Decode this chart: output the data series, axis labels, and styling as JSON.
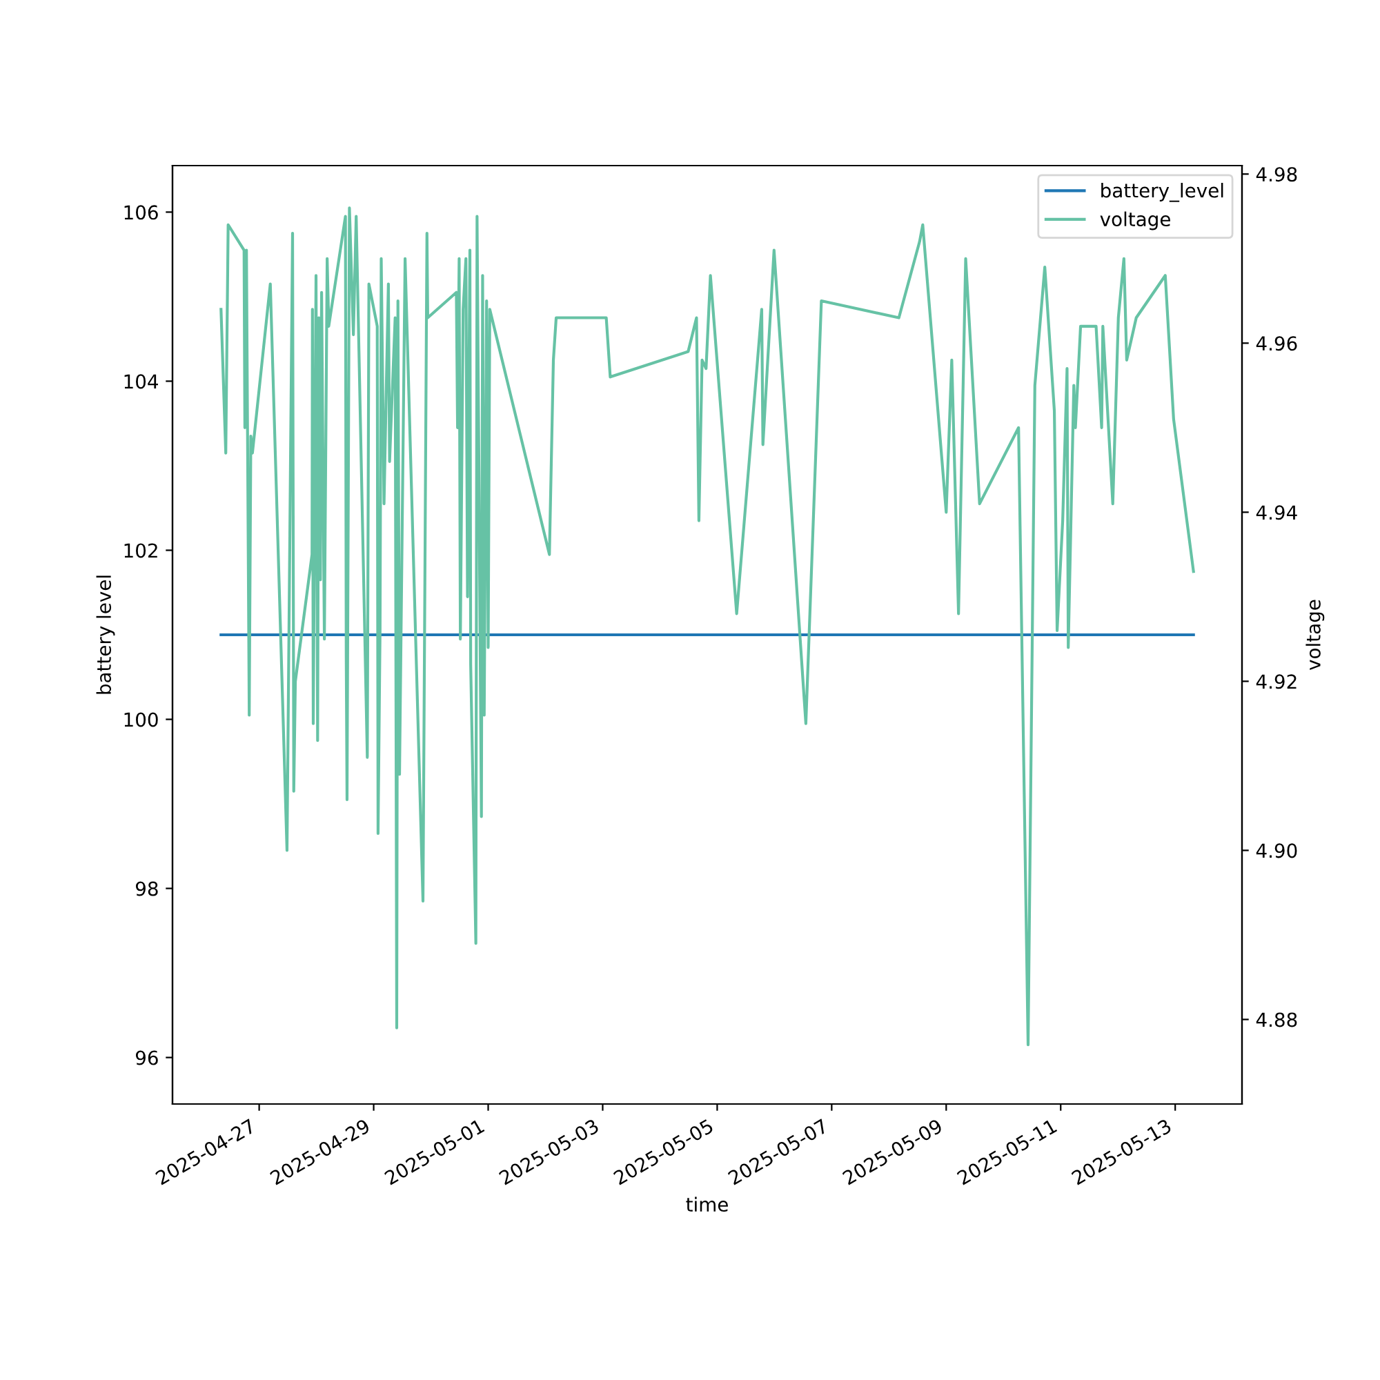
{
  "chart_data": {
    "type": "line",
    "xlabel": "time",
    "ylabel": "battery level",
    "y2label": "voltage",
    "xlim": [
      "2025-04-25T11:40",
      "2025-05-14T04:00"
    ],
    "xticks": [
      {
        "value": "2025-04-27",
        "label": "2025-04-27"
      },
      {
        "value": "2025-04-29",
        "label": "2025-04-29"
      },
      {
        "value": "2025-05-01",
        "label": "2025-05-01"
      },
      {
        "value": "2025-05-03",
        "label": "2025-05-03"
      },
      {
        "value": "2025-05-05",
        "label": "2025-05-05"
      },
      {
        "value": "2025-05-07",
        "label": "2025-05-07"
      },
      {
        "value": "2025-05-09",
        "label": "2025-05-09"
      },
      {
        "value": "2025-05-11",
        "label": "2025-05-11"
      },
      {
        "value": "2025-05-13",
        "label": "2025-05-13"
      }
    ],
    "ylim": [
      95.45,
      106.55
    ],
    "yticks": [
      96,
      98,
      100,
      102,
      104,
      106
    ],
    "y2lim": [
      4.87,
      4.981
    ],
    "y2ticks": [
      4.88,
      {
        "value": 4.9,
        "label": "4.90"
      },
      4.92,
      4.94,
      4.96,
      4.98
    ],
    "grid": false,
    "legend": "top right",
    "line_style": "solid",
    "marker": "none",
    "series": [
      {
        "name": "battery_level",
        "color": "#1f77b4",
        "x": [
          "2025-04-26T08:00",
          "2025-05-13T07:40"
        ],
        "values": [
          101,
          101
        ]
      },
      {
        "name": "voltage",
        "color": "#66c2a5",
        "axis": "y2",
        "x": [
          "2025-04-26T08:00",
          "2025-04-26T10:00",
          "2025-04-26T11:00",
          "2025-04-26T17:40",
          "2025-04-26T18:00",
          "2025-04-26T18:40",
          "2025-04-26T19:50",
          "2025-04-26T20:30",
          "2025-04-26T21:10",
          "2025-04-27T04:40",
          "2025-04-27T11:40",
          "2025-04-27T14:00",
          "2025-04-27T14:30",
          "2025-04-27T15:10",
          "2025-04-27T22:10",
          "2025-04-27T22:20",
          "2025-04-27T22:40",
          "2025-04-27T23:50",
          "2025-04-28T00:30",
          "2025-04-28T01:00",
          "2025-04-28T01:40",
          "2025-04-28T02:10",
          "2025-04-28T03:20",
          "2025-04-28T04:30",
          "2025-04-28T05:10",
          "2025-04-28T12:10",
          "2025-04-28T12:30",
          "2025-04-28T12:50",
          "2025-04-28T13:50",
          "2025-04-28T15:30",
          "2025-04-28T16:40",
          "2025-04-28T21:20",
          "2025-04-28T22:00",
          "2025-04-29T01:30",
          "2025-04-29T01:50",
          "2025-04-29T02:40",
          "2025-04-29T03:10",
          "2025-04-29T04:20",
          "2025-04-29T06:10",
          "2025-04-29T06:40",
          "2025-04-29T09:00",
          "2025-04-29T09:40",
          "2025-04-29T10:10",
          "2025-04-29T10:50",
          "2025-04-29T13:10",
          "2025-04-29T20:40",
          "2025-04-29T22:20",
          "2025-04-29T22:40",
          "2025-04-30T10:40",
          "2025-04-30T11:10",
          "2025-04-30T11:50",
          "2025-04-30T12:20",
          "2025-04-30T13:30",
          "2025-04-30T14:40",
          "2025-04-30T15:20",
          "2025-04-30T16:20",
          "2025-04-30T16:40",
          "2025-04-30T18:50",
          "2025-04-30T19:20",
          "2025-04-30T21:10",
          "2025-04-30T21:40",
          "2025-04-30T22:20",
          "2025-04-30T23:20",
          "2025-05-01T00:00",
          "2025-05-01T00:40",
          "2025-05-02T01:40",
          "2025-05-02T03:20",
          "2025-05-02T04:30",
          "2025-05-03T01:30",
          "2025-05-03T03:10",
          "2025-05-04T11:50",
          "2025-05-04T15:20",
          "2025-05-04T16:20",
          "2025-05-04T17:40",
          "2025-05-04T19:20",
          "2025-05-04T21:10",
          "2025-05-05T08:10",
          "2025-05-05T18:40",
          "2025-05-05T19:10",
          "2025-05-05T23:50",
          "2025-05-06T13:10",
          "2025-05-06T19:40",
          "2025-05-08T04:10",
          "2025-05-08T12:50",
          "2025-05-08T14:10",
          "2025-05-09T00:00",
          "2025-05-09T02:20",
          "2025-05-09T05:10",
          "2025-05-09T08:10",
          "2025-05-09T14:00",
          "2025-05-10T06:20",
          "2025-05-10T10:20",
          "2025-05-10T13:10",
          "2025-05-10T17:20",
          "2025-05-10T21:20",
          "2025-05-10T22:30",
          "2025-05-11T00:50",
          "2025-05-11T02:40",
          "2025-05-11T03:10",
          "2025-05-11T05:30",
          "2025-05-11T06:10",
          "2025-05-11T08:20",
          "2025-05-11T14:50",
          "2025-05-11T17:10",
          "2025-05-11T17:40",
          "2025-05-11T21:50",
          "2025-05-12T00:10",
          "2025-05-12T02:30",
          "2025-05-12T03:40",
          "2025-05-12T07:40",
          "2025-05-12T19:50",
          "2025-05-12T23:20",
          "2025-05-13T07:40"
        ],
        "values": [
          4.964,
          4.947,
          4.974,
          4.971,
          4.95,
          4.971,
          4.916,
          4.949,
          4.947,
          4.967,
          4.9,
          4.973,
          4.907,
          4.92,
          4.935,
          4.964,
          4.915,
          4.968,
          4.913,
          4.963,
          4.932,
          4.966,
          4.925,
          4.97,
          4.962,
          4.975,
          4.923,
          4.906,
          4.976,
          4.961,
          4.975,
          4.911,
          4.967,
          4.962,
          4.902,
          4.926,
          4.97,
          4.941,
          4.967,
          4.946,
          4.963,
          4.879,
          4.965,
          4.909,
          4.97,
          4.894,
          4.973,
          4.963,
          4.966,
          4.95,
          4.97,
          4.925,
          4.964,
          4.97,
          4.93,
          4.971,
          4.922,
          4.889,
          4.975,
          4.904,
          4.968,
          4.916,
          4.965,
          4.924,
          4.964,
          4.935,
          4.958,
          4.963,
          4.963,
          4.956,
          4.959,
          4.963,
          4.939,
          4.958,
          4.957,
          4.968,
          4.928,
          4.964,
          4.948,
          4.971,
          4.915,
          4.965,
          4.963,
          4.972,
          4.974,
          4.94,
          4.958,
          4.928,
          4.97,
          4.941,
          4.95,
          4.877,
          4.955,
          4.969,
          4.952,
          4.926,
          4.939,
          4.957,
          4.924,
          4.955,
          4.95,
          4.962,
          4.962,
          4.95,
          4.962,
          4.941,
          4.963,
          4.97,
          4.958,
          4.963,
          4.968,
          4.951,
          4.933
        ]
      }
    ]
  }
}
